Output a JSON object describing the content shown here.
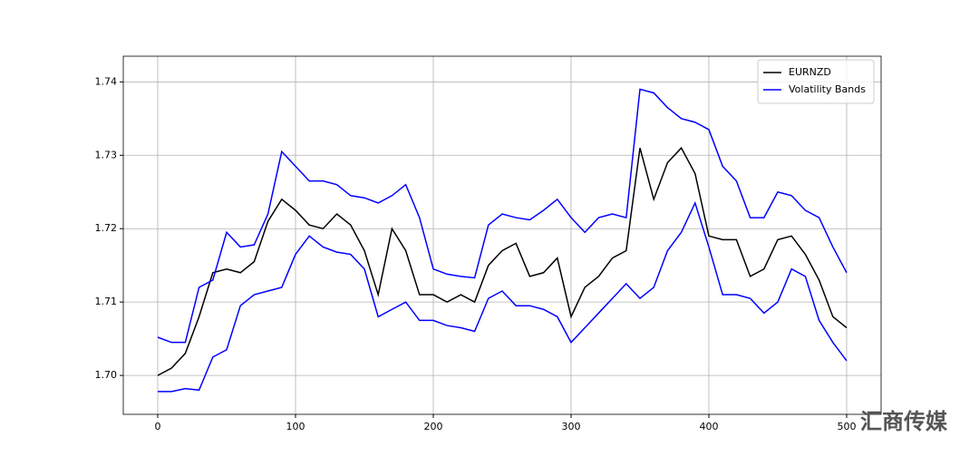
{
  "chart_data": {
    "type": "line",
    "x": [
      0,
      10,
      20,
      30,
      40,
      50,
      60,
      70,
      80,
      90,
      100,
      110,
      120,
      130,
      140,
      150,
      160,
      170,
      180,
      190,
      200,
      210,
      220,
      230,
      240,
      250,
      260,
      270,
      280,
      290,
      300,
      310,
      320,
      330,
      340,
      350,
      360,
      370,
      380,
      390,
      400,
      410,
      420,
      430,
      440,
      450,
      460,
      470,
      480,
      490,
      500
    ],
    "series": [
      {
        "name": "EURNZD",
        "color": "#000000",
        "values": [
          1.7,
          1.701,
          1.703,
          1.708,
          1.714,
          1.7145,
          1.714,
          1.7155,
          1.721,
          1.724,
          1.7225,
          1.7205,
          1.72,
          1.722,
          1.7205,
          1.717,
          1.711,
          1.72,
          1.717,
          1.711,
          1.711,
          1.71,
          1.711,
          1.71,
          1.715,
          1.717,
          1.718,
          1.7135,
          1.714,
          1.716,
          1.708,
          1.712,
          1.7135,
          1.716,
          1.717,
          1.731,
          1.724,
          1.729,
          1.731,
          1.7275,
          1.719,
          1.7185,
          1.7185,
          1.7135,
          1.7145,
          1.7185,
          1.719,
          1.7165,
          1.713,
          1.708,
          1.7065
        ]
      },
      {
        "name": "Volatility Bands",
        "color": "#0000ff",
        "upper": [
          1.7052,
          1.7045,
          1.7045,
          1.712,
          1.713,
          1.7195,
          1.7175,
          1.7178,
          1.722,
          1.7305,
          1.7285,
          1.7265,
          1.7265,
          1.726,
          1.7245,
          1.7242,
          1.7235,
          1.7245,
          1.726,
          1.7215,
          1.7145,
          1.7138,
          1.7135,
          1.7133,
          1.7205,
          1.722,
          1.7215,
          1.7212,
          1.7225,
          1.724,
          1.7215,
          1.7195,
          1.7215,
          1.722,
          1.7215,
          1.739,
          1.7385,
          1.7365,
          1.735,
          1.7345,
          1.7335,
          1.7285,
          1.7265,
          1.7215,
          1.7215,
          1.725,
          1.7245,
          1.7225,
          1.7215,
          1.7175,
          1.714
        ],
        "lower": [
          1.6978,
          1.6978,
          1.6982,
          1.698,
          1.7025,
          1.7035,
          1.7095,
          1.711,
          1.7115,
          1.712,
          1.7165,
          1.719,
          1.7175,
          1.7168,
          1.7165,
          1.7145,
          1.708,
          1.709,
          1.71,
          1.7075,
          1.7075,
          1.7068,
          1.7065,
          1.706,
          1.7105,
          1.7115,
          1.7095,
          1.7095,
          1.709,
          1.708,
          1.7045,
          1.7065,
          1.7085,
          1.7105,
          1.7125,
          1.7105,
          1.712,
          1.717,
          1.7195,
          1.7235,
          1.7175,
          1.711,
          1.711,
          1.7105,
          1.7085,
          1.71,
          1.7145,
          1.7135,
          1.7075,
          1.7045,
          1.702
        ]
      }
    ],
    "xlim": [
      -25,
      525
    ],
    "xticks": [
      0,
      100,
      200,
      300,
      400,
      500
    ],
    "ylim": [
      1.6947,
      1.7435
    ],
    "yticks": [
      {
        "value": 1.7,
        "label": "1.70"
      },
      1.71,
      1.72,
      1.73,
      1.74
    ],
    "grid": true,
    "legend": "upper-right",
    "watermark": "汇商传媒"
  }
}
